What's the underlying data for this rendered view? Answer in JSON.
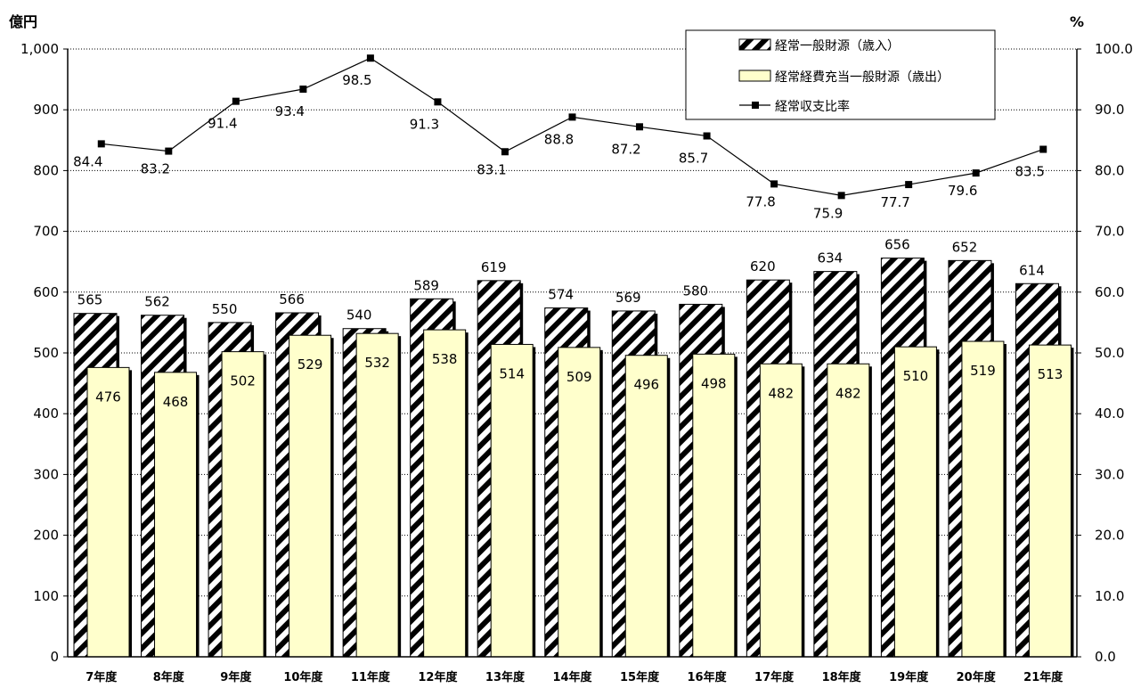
{
  "chart_data": {
    "type": "bar",
    "categories": [
      "7年度",
      "8年度",
      "9年度",
      "10年度",
      "11年度",
      "12年度",
      "13年度",
      "14年度",
      "15年度",
      "16年度",
      "17年度",
      "18年度",
      "19年度",
      "20年度",
      "21年度"
    ],
    "series": [
      {
        "name": "経常一般財源（歳入）",
        "kind": "bar",
        "pattern": "diagonal-hatch",
        "values": [
          565,
          562,
          550,
          566,
          540,
          589,
          619,
          574,
          569,
          580,
          620,
          634,
          656,
          652,
          614
        ]
      },
      {
        "name": "経常経費充当一般財源（歳出）",
        "kind": "bar",
        "color": "#FFFFCC",
        "values": [
          476,
          468,
          502,
          529,
          532,
          538,
          514,
          509,
          496,
          498,
          482,
          482,
          510,
          519,
          513
        ]
      },
      {
        "name": "経常収支比率",
        "kind": "line",
        "axis": "right",
        "marker": "square",
        "values": [
          84.4,
          83.2,
          91.4,
          93.4,
          98.5,
          91.3,
          83.1,
          88.8,
          87.2,
          85.7,
          77.8,
          75.9,
          77.7,
          79.6,
          83.5
        ]
      }
    ],
    "y_left": {
      "unit": "億円",
      "lim": [
        0,
        1000
      ],
      "step": 100,
      "ticks": [
        "0",
        "100",
        "200",
        "300",
        "400",
        "500",
        "600",
        "700",
        "800",
        "900",
        "1,000"
      ]
    },
    "y_right": {
      "unit": "%",
      "lim": [
        0,
        100
      ],
      "step": 10,
      "ticks": [
        "0.0",
        "10.0",
        "20.0",
        "30.0",
        "40.0",
        "50.0",
        "60.0",
        "70.0",
        "80.0",
        "90.0",
        "100.0"
      ]
    },
    "grid": "horizontal dotted",
    "legend": "top-right"
  }
}
